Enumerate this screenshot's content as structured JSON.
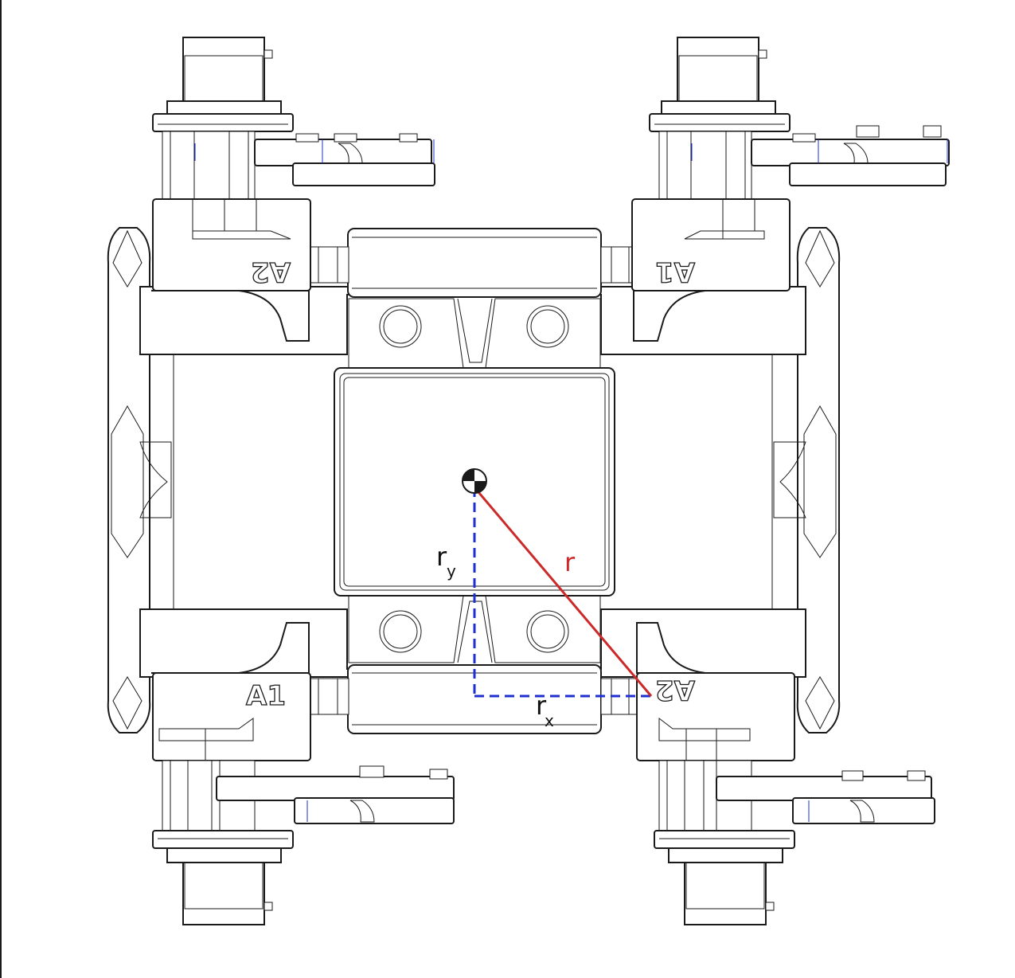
{
  "labels": {
    "module_top_left": "A2",
    "module_top_right": "A1",
    "module_bottom_left": "A1",
    "module_bottom_right": "A2"
  },
  "dimensions": {
    "r_symbol": "r",
    "ry_symbol": "r",
    "ry_subscript": "y",
    "rx_symbol": "r",
    "rx_subscript": "x"
  },
  "colors": {
    "radius_line": "#cc2a2a",
    "component_lines": "#1f2fd0",
    "outline": "#1a1a1a"
  },
  "icons": {
    "center_marker": "center-of-mass-icon"
  }
}
